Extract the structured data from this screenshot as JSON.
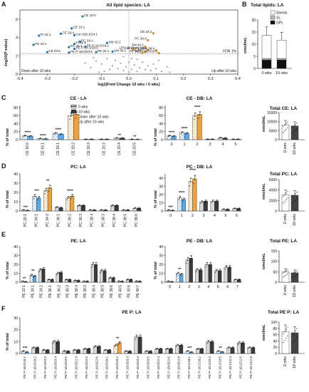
{
  "colors": {
    "w0": "#d9d9d9",
    "w10": "#3a3a3a",
    "down": "#5aa9e6",
    "up": "#f0a23a",
    "point": "#1f77b4",
    "upPt": "#d98c1a",
    "fdr": "#555555"
  },
  "figure": {
    "panelA": {
      "letter": "A",
      "title": "All lipid species: LA",
      "ylabel": "-log10(P-value)",
      "xlabel": "log2(Fold Change 10 wks / 0 wks)",
      "xticks": [
        "-0.4",
        "-0.3",
        "-0.2",
        "-0.1",
        "0.0",
        "0.1",
        "0.2",
        "0.3",
        "0.4"
      ],
      "yticks": [
        "0",
        "2",
        "4",
        "6"
      ],
      "fdr": "FDR 1%",
      "down": "Down after 10 wks",
      "up": "Up after 10 wks",
      "labels": [
        "CE 16:0",
        "CE 18:1",
        "PI 34:1",
        "CE 20:4",
        "Cer d18:1/24:1",
        "PE 32:1",
        "PC 34:1",
        "PI 40:6",
        "PE P-16:0/18:1",
        "PC 36:1",
        "CE 20:5",
        "PE P-18:1/18:1",
        "PE P-18:0/20:5",
        "SM 42:2",
        "PE 34:1",
        "SM 36:1",
        "CE 18:2",
        "PC 36:4",
        "LPC 18:0",
        "Cer d18:1/24:0",
        "PC 34:2",
        "PC 38:4",
        "PE 38:2",
        "LPC 16:0",
        "SM 42:1",
        "PE P-18:0/18:2"
      ]
    },
    "panelB": {
      "letter": "B",
      "title": "Total lipids: LA",
      "ylabel": "nmol/mL",
      "yticks": [
        "0",
        "5",
        "10",
        "15",
        "20"
      ],
      "legend": [
        "Sterols",
        "SL",
        "GPL"
      ],
      "categories": [
        "0 wks",
        "10 wks"
      ]
    },
    "panelC": {
      "letter": "C",
      "title": "CE - LA",
      "title2": "CE - DB: LA",
      "total": "Total CE: LA",
      "ylabel": "% of total",
      "ylabel2": "nmol/mL",
      "legend": [
        "0 wks",
        "10 wks",
        "Down after 10 wks",
        "Up after 10 wks"
      ],
      "cats": [
        "CE 16:0",
        "CE 16:1",
        "CE 18:1",
        "CE 18:2",
        "CE 18:3",
        "CE 20:3",
        "CE 20:4",
        "CE 20:5"
      ],
      "dbcats": [
        "0",
        "1",
        "2",
        "3",
        "4",
        "5"
      ],
      "yticks": [
        "0",
        "20",
        "40",
        "60",
        "80"
      ],
      "totalticks": [
        "0",
        "5000",
        "10000",
        "15000"
      ],
      "groups": [
        "0 wks",
        "10 wks"
      ]
    },
    "panelD": {
      "letter": "D",
      "title": "PC: LA",
      "title2": "PC - DB: LA",
      "total": "Total PC: LA",
      "ylabel": "% of total",
      "ylabel2": "nmol/mL",
      "cats": [
        "PC 32:1",
        "PC 34:1",
        "PC 34:2",
        "PC 36:1",
        "PC 36:2",
        "PC 36:3",
        "PC 38:4",
        "PC 38:3",
        "PC 38:4",
        "PC 38:5",
        "PC 38:6"
      ],
      "dbcats": [
        "0",
        "1",
        "2",
        "3",
        "4",
        "5",
        "6"
      ],
      "yticks": [
        "0",
        "10",
        "20",
        "30",
        "40"
      ],
      "totalticks": [
        "0",
        "2000",
        "4000",
        "6000"
      ]
    },
    "panelE": {
      "letter": "E",
      "title": "PE: LA",
      "title2": "PE - DB: LA",
      "total": "Total PE: LA",
      "ylabel": "% of total",
      "ylabel2": "nmol/mL",
      "cats": [
        "PE 32:1",
        "PE 34:1",
        "PE 34:2",
        "PE 36:1",
        "PE 36:2",
        "PE 36:3",
        "PE 36:4",
        "PE 38:3",
        "PE 38:4",
        "PE 38:5",
        "PE 38:6",
        "PE 40:5",
        "PE 40:6",
        "PE 40:7"
      ],
      "dbcats": [
        "0",
        "1",
        "2",
        "3",
        "4",
        "5",
        "6",
        "7"
      ],
      "yticks": [
        "0",
        "10",
        "20",
        "30",
        "40"
      ],
      "totalticks": [
        "0",
        "50",
        "100",
        "150"
      ]
    },
    "panelF": {
      "letter": "F",
      "title": "PE P: LA",
      "total": "Total PE P: LA",
      "ylabel": "% of total",
      "ylabel2": "nmol/mL",
      "cats": [
        "PE P-16:0/18:1",
        "PE P-16:0/18:2",
        "PE P-16:0/20:3",
        "PE P-16:0/20:4",
        "PE P-16:0/20:5",
        "PE P-16:0/22:4",
        "PE P-16:0/22:5",
        "PE P-16:0/22:6",
        "PE P-18:0/18:1",
        "PE P-18:0/18:2",
        "PE P-18:0/20:3",
        "PE P-18:0/20:4",
        "PE P-18:0/20:5",
        "PE P-18:0/22:4",
        "PE P-18:0/22:5",
        "PE P-18:0/22:6",
        "PE P-18:1/18:1",
        "PE P-18:1/18:2",
        "PE P-18:1/20:4",
        "PE P-18:1/20:5",
        "PE P-18:1/22:4",
        "PE P-18:1/22:5",
        "PE P-18:1/22:6"
      ],
      "yticks": [
        "0",
        "10",
        "20",
        "30"
      ],
      "totalticks": [
        "0",
        "20",
        "40",
        "60",
        "80",
        "100"
      ]
    }
  },
  "chart_data": [
    {
      "type": "scatter",
      "title": "All lipid species: LA",
      "xlabel": "log2(Fold Change 10 wks / 0 wks)",
      "ylabel": "-log10(P-value)",
      "xlim": [
        -0.4,
        0.4
      ],
      "ylim": [
        0,
        7
      ],
      "points": [
        {
          "name": "CE 16:0",
          "x": -0.17,
          "y": 6.3,
          "c": "down"
        },
        {
          "name": "CE 18:1",
          "x": -0.21,
          "y": 5.0,
          "c": "down"
        },
        {
          "name": "PI 34:1",
          "x": -0.33,
          "y": 4.2,
          "c": "down"
        },
        {
          "name": "CE 20:4",
          "x": -0.25,
          "y": 4.4,
          "c": "down"
        },
        {
          "name": "Cer d18:1/24:1",
          "x": -0.2,
          "y": 4.25,
          "c": "down"
        },
        {
          "name": "PE 32:1",
          "x": -0.35,
          "y": 3.2,
          "c": "down"
        },
        {
          "name": "PC 34:1",
          "x": -0.18,
          "y": 3.55,
          "c": "down"
        },
        {
          "name": "PI 40:6",
          "x": -0.2,
          "y": 3.3,
          "c": "down"
        },
        {
          "name": "PE P-16:0/18:1",
          "x": -0.16,
          "y": 3.0,
          "c": "down"
        },
        {
          "name": "PC 36:1",
          "x": -0.22,
          "y": 2.95,
          "c": "down"
        },
        {
          "name": "CE 20:5",
          "x": -0.3,
          "y": 2.4,
          "c": "down"
        },
        {
          "name": "PE P-18:1/18:1",
          "x": -0.2,
          "y": 2.75,
          "c": "down"
        },
        {
          "name": "PE P-18:0/20:5",
          "x": -0.22,
          "y": 2.35,
          "c": "down"
        },
        {
          "name": "SM 42:2",
          "x": -0.08,
          "y": 3.4,
          "c": "down"
        },
        {
          "name": "PE 34:1",
          "x": -0.12,
          "y": 2.4,
          "c": "down"
        },
        {
          "name": "SM 36:1",
          "x": -0.06,
          "y": 2.45,
          "c": "down"
        },
        {
          "name": "CE 18:2",
          "x": 0.09,
          "y": 4.45,
          "c": "up"
        },
        {
          "name": "PC 36:4",
          "x": 0.07,
          "y": 3.7,
          "c": "up"
        },
        {
          "name": "LPC 18:0",
          "x": 0.07,
          "y": 2.65,
          "c": "up"
        },
        {
          "name": "Cer d18:1/24:0",
          "x": 0.07,
          "y": 2.65,
          "c": "up"
        },
        {
          "name": "PC 34:2",
          "x": 0.06,
          "y": 2.45,
          "c": "up"
        },
        {
          "name": "PC 38:4",
          "x": 0.1,
          "y": 2.6,
          "c": "up"
        },
        {
          "name": "PE 38:2",
          "x": 0.05,
          "y": 2.3,
          "c": "up"
        },
        {
          "name": "LPC 16:0",
          "x": 0.02,
          "y": 2.7,
          "c": "up"
        },
        {
          "name": "SM 42:1",
          "x": 0.06,
          "y": 3.0,
          "c": "up"
        },
        {
          "name": "PE P-18:0/18:2",
          "x": 0.11,
          "y": 2.3,
          "c": "up"
        }
      ],
      "fdr_y": 2.2
    },
    {
      "type": "bar",
      "title": "Total lipids: LA",
      "categories": [
        "0 wks",
        "10 wks"
      ],
      "ylabel": "nmol/mL",
      "ylim": [
        0,
        20
      ],
      "series": [
        {
          "name": "GPL",
          "values": [
            3.5,
            3.5
          ]
        },
        {
          "name": "SL",
          "values": [
            0.6,
            0.6
          ]
        },
        {
          "name": "Sterols",
          "values": [
            9.5,
            7.6
          ]
        }
      ],
      "errors": [
        3.5,
        3.2
      ]
    },
    {
      "type": "bar",
      "title": "CE - LA",
      "ylabel": "% of total",
      "ylim": [
        0,
        85
      ],
      "categories": [
        "CE 16:0",
        "CE 16:1",
        "CE 18:1",
        "CE 18:2",
        "CE 18:3",
        "CE 20:3",
        "CE 20:4",
        "CE 20:5"
      ],
      "series": [
        {
          "name": "0 wks",
          "values": [
            10,
            3,
            16,
            60,
            1,
            1,
            4,
            1
          ]
        },
        {
          "name": "10 wks",
          "values": [
            9,
            2,
            14,
            63,
            1,
            1,
            4,
            0.6
          ]
        }
      ],
      "stars": [
        "****",
        "****",
        "****",
        "****",
        "",
        "",
        "**",
        "**"
      ],
      "status": [
        "down",
        "down",
        "down",
        "up",
        "none",
        "none",
        "none",
        "down"
      ]
    },
    {
      "type": "bar",
      "title": "CE - DB: LA",
      "ylabel": "% of total",
      "ylim": [
        0,
        85
      ],
      "categories": [
        "0",
        "1",
        "2",
        "3",
        "4",
        "5"
      ],
      "series": [
        {
          "name": "0 wks",
          "values": [
            10,
            18,
            60,
            1,
            5,
            1
          ]
        },
        {
          "name": "10 wks",
          "values": [
            9,
            16,
            63,
            1,
            4,
            1
          ]
        }
      ],
      "stars": [
        "****",
        "****",
        "****",
        "",
        "",
        ""
      ],
      "status": [
        "down",
        "down",
        "up",
        "none",
        "none",
        "none"
      ]
    },
    {
      "type": "bar",
      "title": "Total CE: LA",
      "ylabel": "nmol/mL",
      "ylim": [
        0,
        15000
      ],
      "categories": [
        "0 wks",
        "10 wks"
      ],
      "values": [
        8200,
        7600
      ]
    },
    {
      "type": "bar",
      "title": "PC: LA",
      "ylabel": "% of total",
      "ylim": [
        0,
        40
      ],
      "categories": [
        "PC 32:1",
        "PC 34:1",
        "PC 34:2",
        "PC 36:1",
        "PC 36:2",
        "PC 36:3",
        "PC 38:4",
        "PC 38:3",
        "PC 38:4",
        "PC 38:5",
        "PC 38:6"
      ],
      "series": [
        {
          "name": "0 wks",
          "values": [
            1,
            16,
            22,
            4,
            14,
            6,
            1,
            1,
            6,
            1,
            3
          ]
        },
        {
          "name": "10 wks",
          "values": [
            0.6,
            14,
            25,
            3.5,
            16,
            6,
            1,
            1,
            6,
            1,
            3
          ]
        }
      ],
      "stars": [
        "***",
        "***",
        "**",
        "",
        "****",
        "",
        "",
        "",
        "",
        "",
        ""
      ],
      "status": [
        "down",
        "down",
        "up",
        "none",
        "up",
        "none",
        "none",
        "none",
        "none",
        "none",
        "none"
      ]
    },
    {
      "type": "bar",
      "title": "PC - DB: LA",
      "ylabel": "% of total",
      "ylim": [
        0,
        45
      ],
      "categories": [
        "0",
        "1",
        "2",
        "3",
        "4",
        "5",
        "6"
      ],
      "series": [
        {
          "name": "0 wks",
          "values": [
            1,
            16,
            36,
            11,
            12,
            2,
            3
          ]
        },
        {
          "name": "10 wks",
          "values": [
            0.7,
            14,
            39,
            12,
            12,
            2,
            3
          ]
        }
      ],
      "stars": [
        "***",
        "****",
        "****",
        "",
        "",
        "",
        ""
      ],
      "status": [
        "down",
        "down",
        "up",
        "none",
        "none",
        "none",
        "none"
      ]
    },
    {
      "type": "bar",
      "title": "Total PC: LA",
      "ylabel": "nmol/mL",
      "ylim": [
        0,
        6000
      ],
      "categories": [
        "0 wks",
        "10 wks"
      ],
      "values": [
        3100,
        3000
      ]
    },
    {
      "type": "bar",
      "title": "PE: LA",
      "ylabel": "% of total",
      "ylim": [
        0,
        40
      ],
      "categories": [
        "PE 32:1",
        "PE 34:1",
        "PE 34:2",
        "PE 36:1",
        "PE 36:2",
        "PE 36:3",
        "PE 36:4",
        "PE 38:3",
        "PE 38:4",
        "PE 38:5",
        "PE 38:6",
        "PE 40:5",
        "PE 40:6",
        "PE 40:7"
      ],
      "series": [
        {
          "name": "0 wks",
          "values": [
            1,
            8,
            14,
            3,
            10,
            3,
            2,
            1,
            20,
            13,
            5,
            1,
            3,
            1
          ]
        },
        {
          "name": "10 wks",
          "values": [
            0.5,
            7,
            15,
            3,
            11,
            3,
            2,
            1,
            20,
            13,
            5,
            1,
            3,
            1
          ]
        }
      ],
      "stars": [
        "**",
        "**",
        "",
        "",
        "",
        "",
        "",
        "",
        "",
        "",
        "",
        "",
        "",
        ""
      ],
      "status": [
        "down",
        "down",
        "none",
        "none",
        "none",
        "none",
        "none",
        "none",
        "none",
        "none",
        "none",
        "none",
        "none",
        "none"
      ]
    },
    {
      "type": "bar",
      "title": "PE - DB: LA",
      "ylabel": "% of total",
      "ylim": [
        0,
        40
      ],
      "categories": [
        "0",
        "1",
        "2",
        "3",
        "4",
        "5",
        "6",
        "7"
      ],
      "series": [
        {
          "name": "0 wks",
          "values": [
            1,
            10,
            25,
            14,
            20,
            13,
            17,
            3
          ]
        },
        {
          "name": "10 wks",
          "values": [
            0.5,
            9,
            27,
            14,
            20,
            13,
            17,
            3
          ]
        }
      ],
      "stars": [
        "",
        "**",
        "",
        "",
        "",
        "",
        "",
        ""
      ],
      "status": [
        "none",
        "down",
        "none",
        "none",
        "none",
        "none",
        "none",
        "none"
      ]
    },
    {
      "type": "bar",
      "title": "Total PE: LA",
      "ylabel": "nmol/mL",
      "ylim": [
        0,
        150
      ],
      "categories": [
        "0 wks",
        "10 wks"
      ],
      "values": [
        50,
        45
      ]
    },
    {
      "type": "bar",
      "title": "PE P: LA",
      "ylabel": "% of total",
      "ylim": [
        0,
        30
      ],
      "categories": [
        "PE P-16:0/18:1",
        "PE P-16:0/18:2",
        "PE P-16:0/20:3",
        "PE P-16:0/20:4",
        "PE P-16:0/20:5",
        "PE P-16:0/22:4",
        "PE P-16:0/22:5",
        "PE P-16:0/22:6",
        "PE P-18:0/18:1",
        "PE P-18:0/18:2",
        "PE P-18:0/20:3",
        "PE P-18:0/20:4",
        "PE P-18:0/20:5",
        "PE P-18:0/22:4",
        "PE P-18:0/22:5",
        "PE P-18:0/22:6",
        "PE P-18:1/18:1",
        "PE P-18:1/18:2",
        "PE P-18:1/20:4",
        "PE P-18:1/20:5",
        "PE P-18:1/22:4",
        "PE P-18:1/22:5",
        "PE P-18:1/22:6"
      ],
      "series": [
        {
          "name": "0 wks",
          "values": [
            2,
            5,
            3,
            10,
            2,
            3,
            4,
            6,
            3,
            7,
            2,
            14,
            2,
            4,
            4,
            7,
            2,
            4,
            10,
            2,
            5,
            9,
            5
          ]
        },
        {
          "name": "10 wks",
          "values": [
            1.2,
            5,
            3,
            10,
            2,
            3,
            4,
            6,
            3,
            9,
            2,
            14,
            2,
            4,
            4,
            7,
            1.2,
            4,
            10,
            1.3,
            5,
            9,
            5
          ]
        }
      ],
      "stars": [
        "***",
        "",
        "",
        "",
        "",
        "",
        "",
        "",
        "",
        "**",
        "",
        "",
        "",
        "",
        "",
        "",
        "***",
        "",
        "",
        "**",
        "",
        "",
        ""
      ],
      "status": [
        "down",
        "none",
        "none",
        "none",
        "none",
        "none",
        "none",
        "none",
        "none",
        "up",
        "none",
        "none",
        "none",
        "none",
        "none",
        "none",
        "down",
        "none",
        "none",
        "down",
        "none",
        "none",
        "none"
      ]
    },
    {
      "type": "bar",
      "title": "Total PE P: LA",
      "ylabel": "nmol/mL",
      "ylim": [
        0,
        100
      ],
      "categories": [
        "0 wks",
        "10 wks"
      ],
      "values": [
        70,
        66
      ]
    }
  ]
}
